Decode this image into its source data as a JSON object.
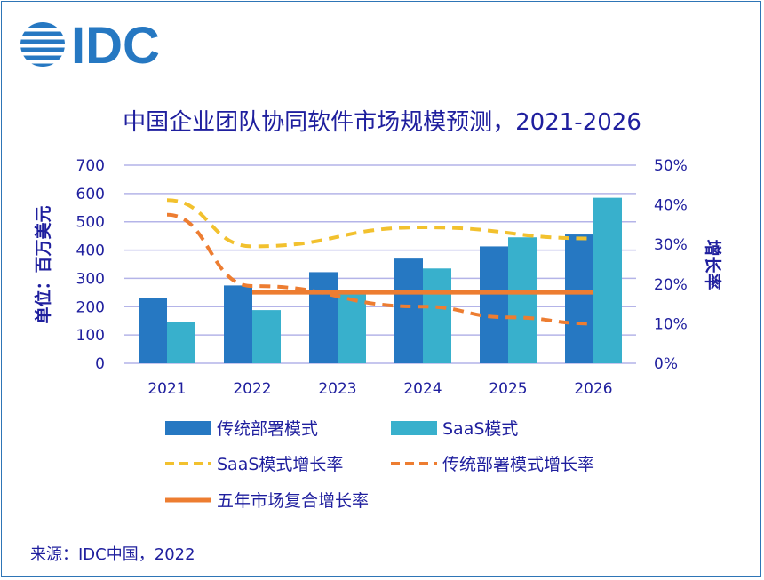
{
  "brand": {
    "logo_text": "IDC"
  },
  "source": "来源：IDC中国，2022",
  "chart_data": {
    "type": "bar",
    "title": "中国企业团队协同软件市场规模预测，2021-2026",
    "ylabel": "单位：百万美元",
    "y2label": "增长率",
    "categories": [
      "2021",
      "2022",
      "2023",
      "2024",
      "2025",
      "2026"
    ],
    "ylim": [
      0,
      700
    ],
    "yticks": [
      0,
      100,
      200,
      300,
      400,
      500,
      600,
      700
    ],
    "y2lim": [
      0,
      50
    ],
    "y2ticks": [
      "0%",
      "10%",
      "20%",
      "30%",
      "40%",
      "50%"
    ],
    "grid": true,
    "legend_position": "bottom",
    "bar_series": [
      {
        "name": "传统部署模式",
        "values": [
          232,
          275,
          322,
          370,
          413,
          455
        ],
        "color": "#2678c2"
      },
      {
        "name": "SaaS模式",
        "values": [
          147,
          188,
          248,
          335,
          445,
          585
        ],
        "color": "#38b0cc"
      }
    ],
    "line_series": [
      {
        "name": "SaaS模式增长率",
        "values": [
          41.2,
          29.5,
          null,
          34.3,
          null,
          31.5
        ],
        "color": "#f2c12e",
        "dash": true
      },
      {
        "name": "传统部署模式增长率",
        "values": [
          37.5,
          19.5,
          null,
          14.3,
          11.6,
          10.0
        ],
        "color": "#ed7d31",
        "dash": true
      },
      {
        "name": "五年市场复合增长率",
        "values": [
          null,
          17.9,
          17.9,
          17.9,
          17.9,
          17.9
        ],
        "color": "#ed7d31",
        "dash": false
      }
    ]
  }
}
